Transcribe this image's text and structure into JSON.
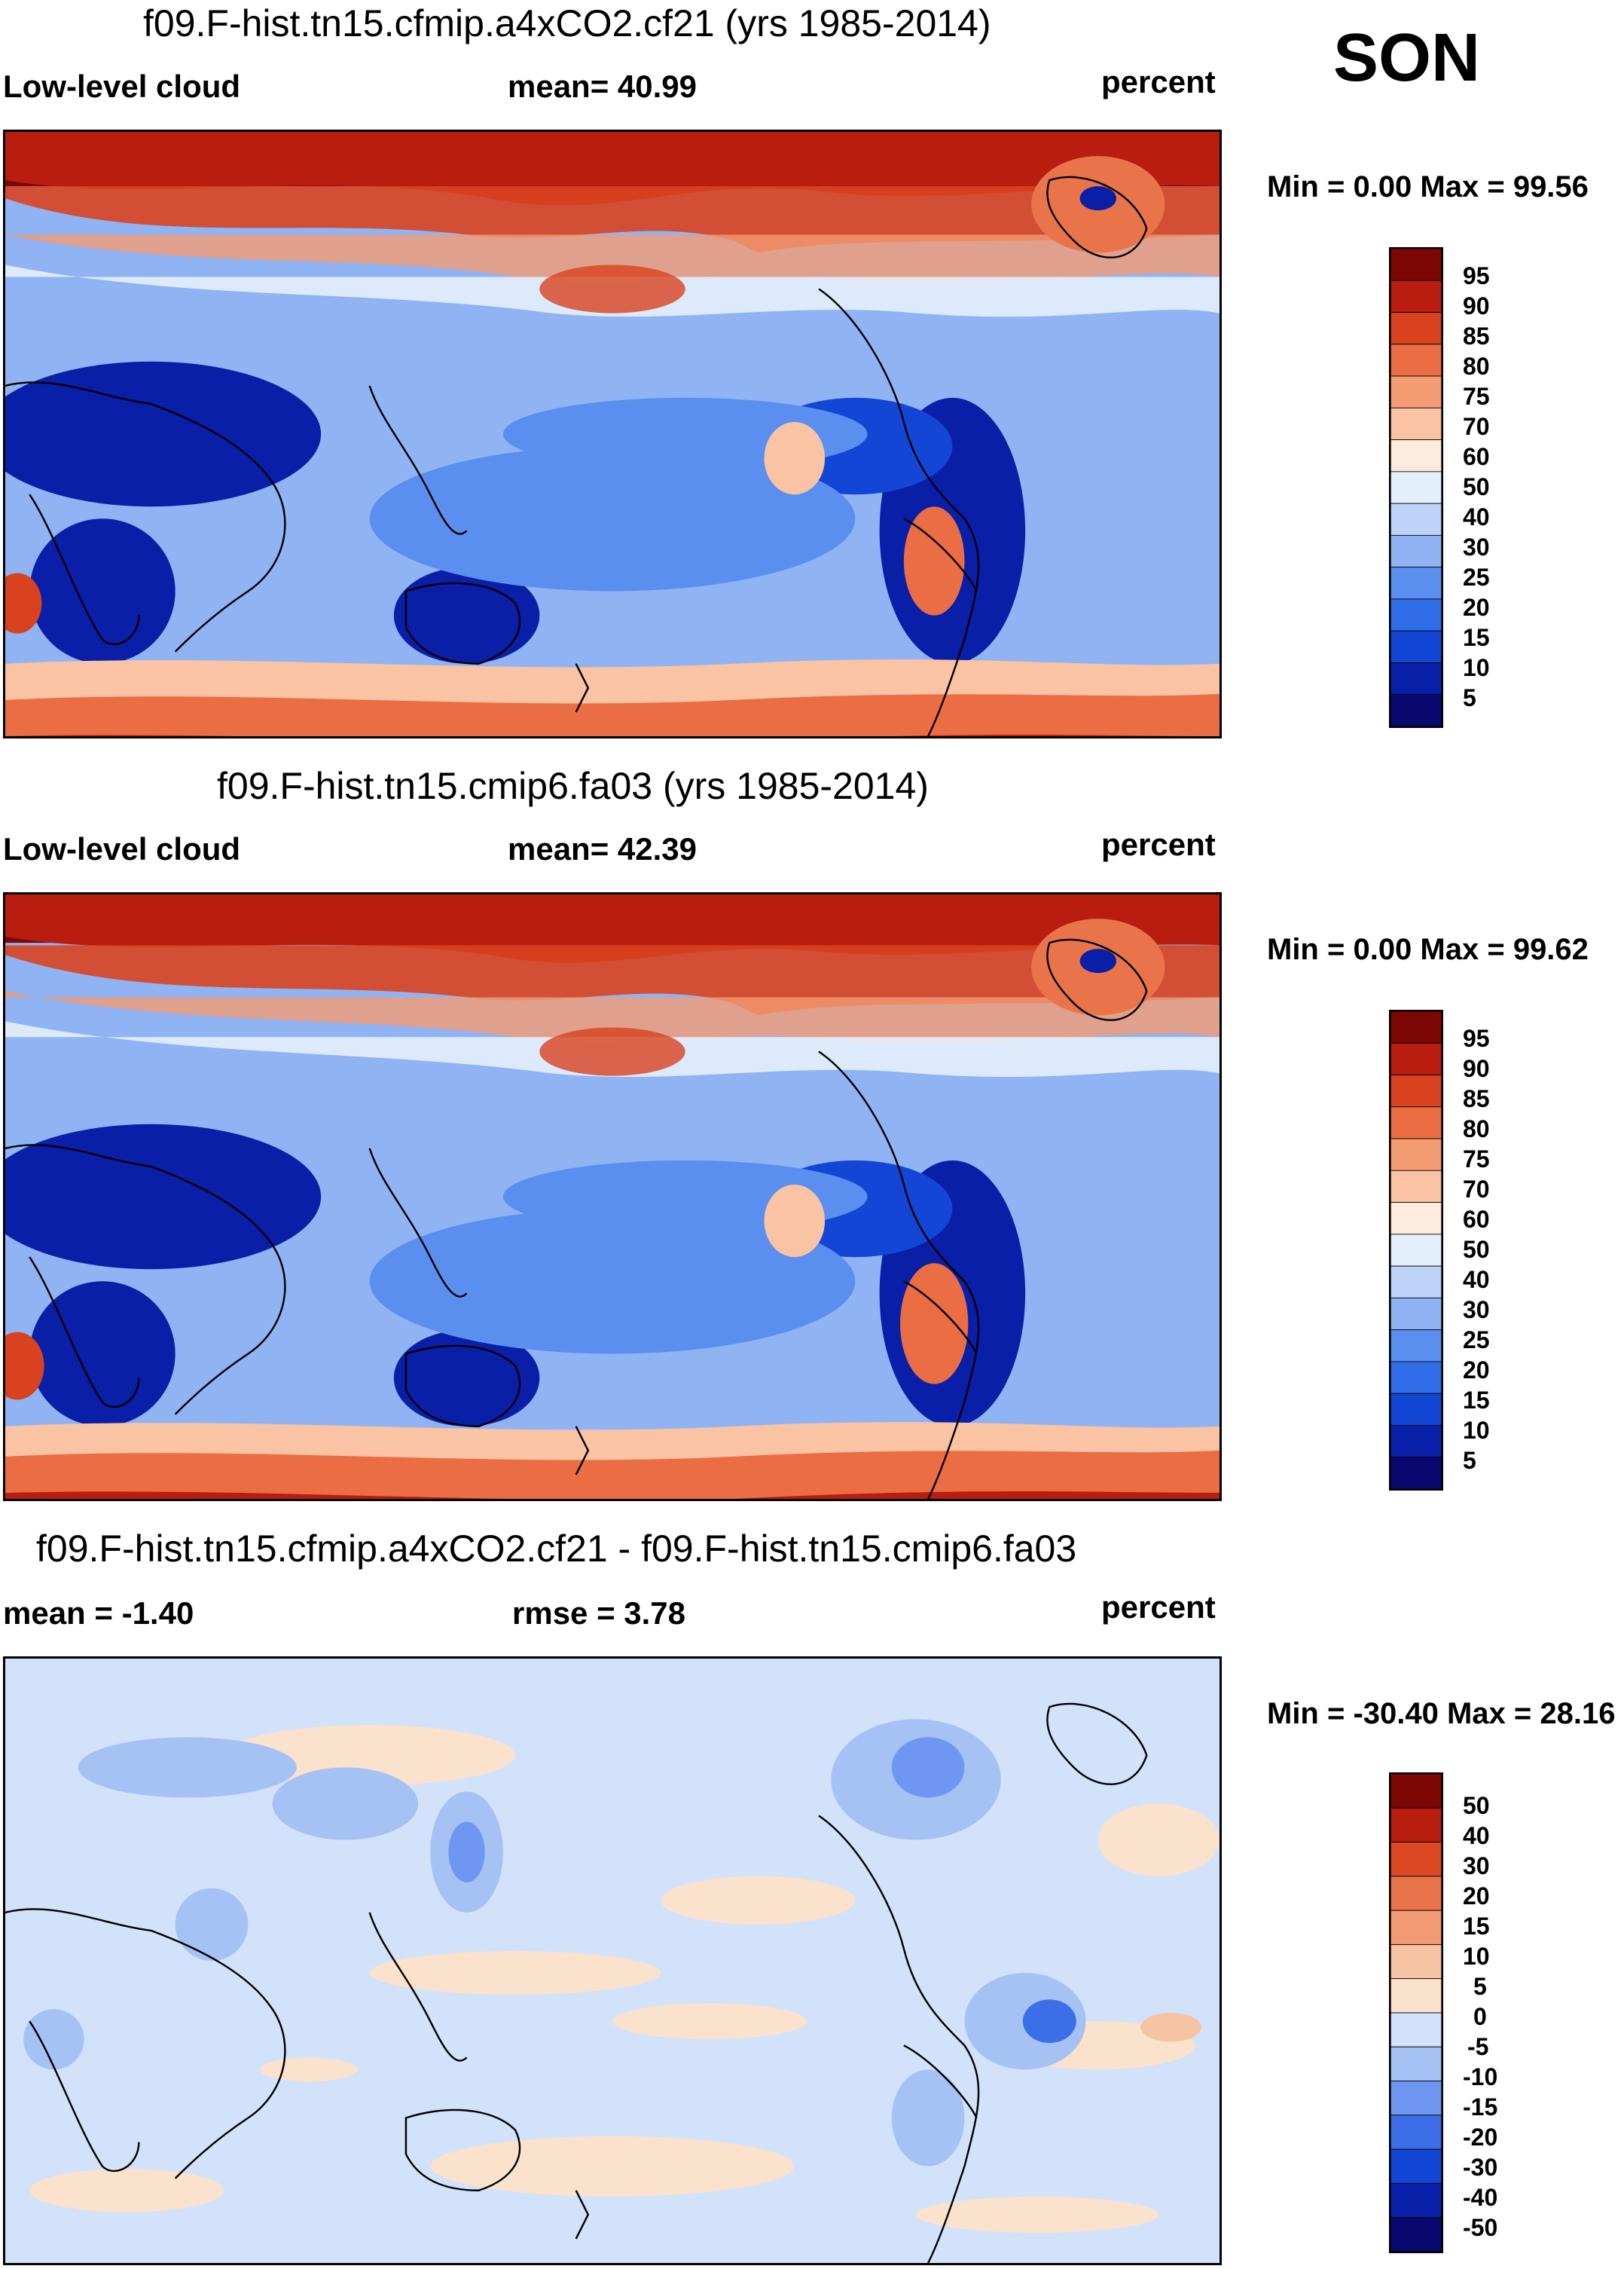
{
  "season": "SON",
  "colors": {
    "abs_scale": [
      "#08086e",
      "#0a1fa8",
      "#1446d6",
      "#2f6ee8",
      "#5a8ff0",
      "#8fb3f3",
      "#bcd3f7",
      "#e4effc",
      "#fdebdd",
      "#f9c3a4",
      "#f39b73",
      "#ea6d43",
      "#d9421f",
      "#b81d10",
      "#7d0705"
    ],
    "diff_scale": [
      "#08086e",
      "#0a1fa8",
      "#1446d6",
      "#3c6ee8",
      "#6f97f1",
      "#a6c2f5",
      "#d2e2fa",
      "#fbe2cd",
      "#f7c4a3",
      "#f29b75",
      "#e9744a",
      "#dc4a24",
      "#b81d10",
      "#7d0705"
    ]
  },
  "chart_data": [
    {
      "type": "heatmap",
      "panel": "top",
      "title": "f09.F-hist.tn15.cfmip.a4xCO2.cf21 (yrs 1985-2014)",
      "left_label": "Low-level cloud",
      "center_label": "mean=  40.99",
      "units": "percent",
      "minmax": "Min =   0.00 Max =  99.56",
      "levels": [
        "95",
        "90",
        "85",
        "80",
        "75",
        "70",
        "60",
        "50",
        "40",
        "30",
        "25",
        "20",
        "15",
        "10",
        "5"
      ]
    },
    {
      "type": "heatmap",
      "panel": "middle",
      "title": "f09.F-hist.tn15.cmip6.fa03 (yrs 1985-2014)",
      "left_label": "Low-level cloud",
      "center_label": "mean=  42.39",
      "units": "percent",
      "minmax": "Min =   0.00 Max =  99.62",
      "levels": [
        "95",
        "90",
        "85",
        "80",
        "75",
        "70",
        "60",
        "50",
        "40",
        "30",
        "25",
        "20",
        "15",
        "10",
        "5"
      ]
    },
    {
      "type": "heatmap",
      "panel": "bottom",
      "title": "f09.F-hist.tn15.cfmip.a4xCO2.cf21 - f09.F-hist.tn15.cmip6.fa03",
      "left_label": "mean =  -1.40",
      "center_label": "rmse =   3.78",
      "units": "percent",
      "minmax": "Min = -30.40 Max =  28.16",
      "levels": [
        "50",
        "40",
        "30",
        "20",
        "15",
        "10",
        "5",
        "0",
        "-5",
        "-10",
        "-15",
        "-20",
        "-30",
        "-40",
        "-50"
      ]
    }
  ]
}
